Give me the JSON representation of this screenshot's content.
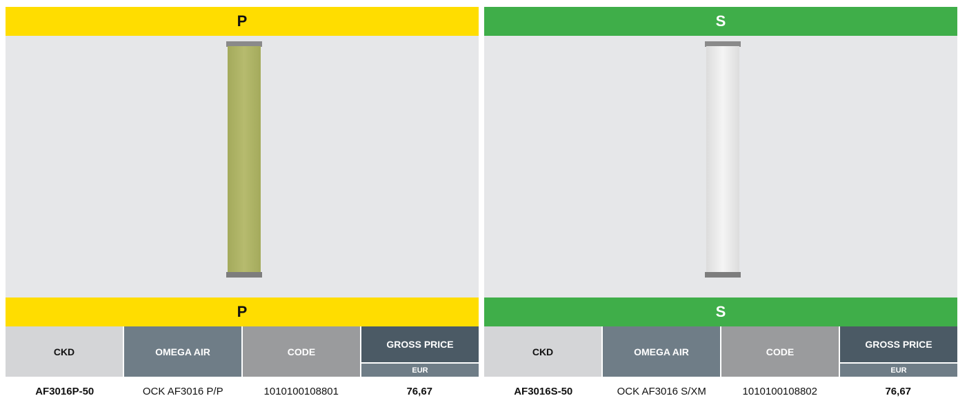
{
  "panels": [
    {
      "header": "P",
      "subheader": "P",
      "table": {
        "columns": [
          "CKD",
          "OMEGA AIR",
          "CODE",
          "GROSS PRICE"
        ],
        "currency": "EUR",
        "rows": [
          [
            "AF3016P-50",
            "OCK AF3016 P/P",
            "1010100108801",
            "76,67"
          ]
        ]
      }
    },
    {
      "header": "S",
      "subheader": "S",
      "table": {
        "columns": [
          "CKD",
          "OMEGA AIR",
          "CODE",
          "GROSS PRICE"
        ],
        "currency": "EUR",
        "rows": [
          [
            "AF3016S-50",
            "OCK AF3016 S/XM",
            "1010100108802",
            "76,67"
          ]
        ]
      }
    }
  ]
}
